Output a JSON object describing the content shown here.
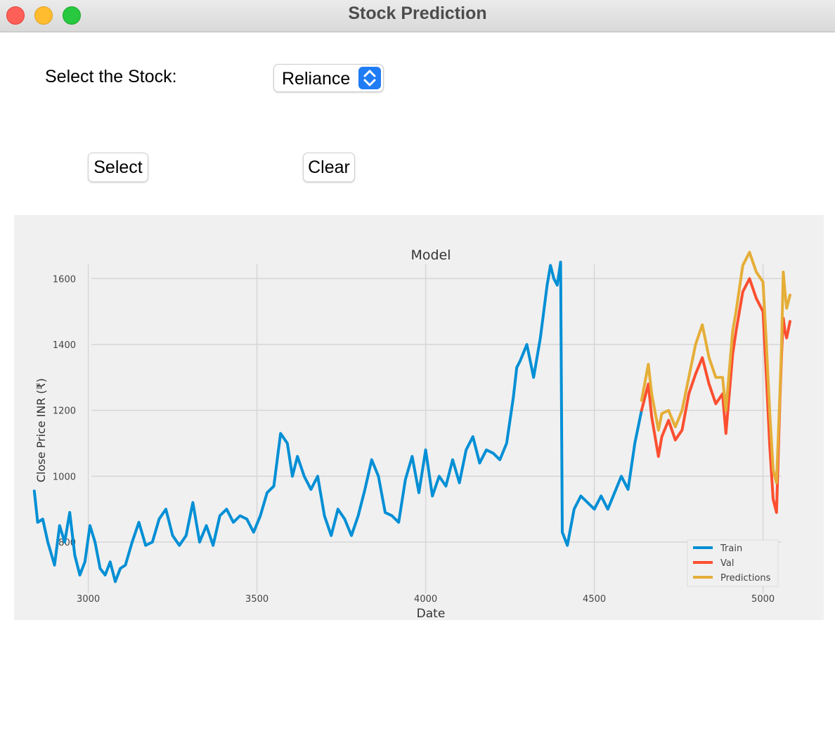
{
  "window": {
    "title": "Stock Prediction"
  },
  "controls": {
    "stock_label": "Select the Stock:",
    "stock_selected": "Reliance",
    "select_button": "Select",
    "clear_button": "Clear"
  },
  "icons": {
    "close": "close-dot-icon",
    "minimize": "minimize-dot-icon",
    "maximize": "maximize-dot-icon",
    "dropdown": "chevron-up-down-icon"
  },
  "chart_data": {
    "type": "line",
    "title": "Model",
    "xlabel": "Date",
    "ylabel": "Close Price INR (₹)",
    "xlim": [
      2780,
      5180
    ],
    "ylim": [
      640,
      1750
    ],
    "xticks": [
      3000,
      3500,
      4000,
      4500,
      5000
    ],
    "yticks": [
      800,
      1000,
      1200,
      1400,
      1600
    ],
    "grid": true,
    "legend_position": "lower-right",
    "series": [
      {
        "name": "Train",
        "color": "#008fd5",
        "x": [
          2840,
          2850,
          2865,
          2880,
          2900,
          2915,
          2930,
          2945,
          2960,
          2975,
          2990,
          3005,
          3020,
          3035,
          3050,
          3065,
          3080,
          3095,
          3110,
          3130,
          3150,
          3170,
          3190,
          3210,
          3230,
          3250,
          3270,
          3290,
          3310,
          3330,
          3350,
          3370,
          3390,
          3410,
          3430,
          3450,
          3470,
          3490,
          3510,
          3530,
          3550,
          3570,
          3590,
          3605,
          3620,
          3640,
          3660,
          3680,
          3700,
          3720,
          3740,
          3760,
          3780,
          3800,
          3820,
          3840,
          3860,
          3880,
          3900,
          3920,
          3940,
          3960,
          3980,
          4000,
          4020,
          4040,
          4060,
          4080,
          4100,
          4120,
          4140,
          4160,
          4180,
          4200,
          4220,
          4240,
          4260,
          4270,
          4280,
          4300,
          4320,
          4340,
          4360,
          4370,
          4380,
          4390,
          4400,
          4405,
          4420,
          4440,
          4460,
          4480,
          4500,
          4520,
          4540,
          4560,
          4580,
          4600,
          4620,
          4630,
          4640
        ],
        "values": [
          955,
          860,
          870,
          800,
          730,
          850,
          800,
          890,
          760,
          700,
          740,
          850,
          800,
          720,
          700,
          740,
          680,
          720,
          730,
          800,
          860,
          790,
          800,
          870,
          900,
          820,
          790,
          820,
          920,
          800,
          850,
          790,
          880,
          900,
          860,
          880,
          870,
          830,
          880,
          950,
          970,
          1130,
          1100,
          1000,
          1060,
          1000,
          960,
          1000,
          880,
          820,
          900,
          870,
          820,
          880,
          960,
          1050,
          1000,
          890,
          880,
          860,
          990,
          1060,
          950,
          1080,
          940,
          1000,
          970,
          1050,
          980,
          1080,
          1120,
          1040,
          1080,
          1070,
          1050,
          1100,
          1240,
          1330,
          1350,
          1400,
          1300,
          1420,
          1580,
          1640,
          1600,
          1580,
          1650,
          830,
          790,
          900,
          940,
          920,
          900,
          940,
          900,
          950,
          1000,
          960,
          1100,
          1150,
          1200
        ]
      },
      {
        "name": "Val",
        "color": "#fc4f30",
        "x": [
          4640,
          4660,
          4670,
          4690,
          4700,
          4720,
          4740,
          4760,
          4780,
          4800,
          4820,
          4840,
          4860,
          4880,
          4890,
          4910,
          4920,
          4940,
          4960,
          4980,
          5000,
          5010,
          5020,
          5030,
          5040,
          5050,
          5055,
          5060,
          5065,
          5070,
          5080
        ],
        "values": [
          1200,
          1280,
          1180,
          1060,
          1120,
          1170,
          1110,
          1140,
          1250,
          1310,
          1360,
          1280,
          1220,
          1250,
          1130,
          1370,
          1440,
          1560,
          1600,
          1540,
          1500,
          1300,
          1090,
          930,
          890,
          1230,
          1370,
          1480,
          1440,
          1420,
          1470
        ]
      },
      {
        "name": "Predictions",
        "color": "#e5ae38",
        "x": [
          4640,
          4660,
          4670,
          4690,
          4700,
          4720,
          4740,
          4760,
          4780,
          4800,
          4820,
          4840,
          4860,
          4880,
          4890,
          4910,
          4920,
          4940,
          4960,
          4980,
          5000,
          5010,
          5020,
          5030,
          5040,
          5050,
          5055,
          5060,
          5065,
          5070,
          5080
        ],
        "values": [
          1230,
          1340,
          1250,
          1140,
          1190,
          1200,
          1150,
          1200,
          1300,
          1400,
          1460,
          1360,
          1300,
          1300,
          1200,
          1440,
          1500,
          1640,
          1680,
          1620,
          1590,
          1400,
          1190,
          1020,
          980,
          1250,
          1400,
          1620,
          1560,
          1510,
          1550
        ]
      }
    ]
  }
}
